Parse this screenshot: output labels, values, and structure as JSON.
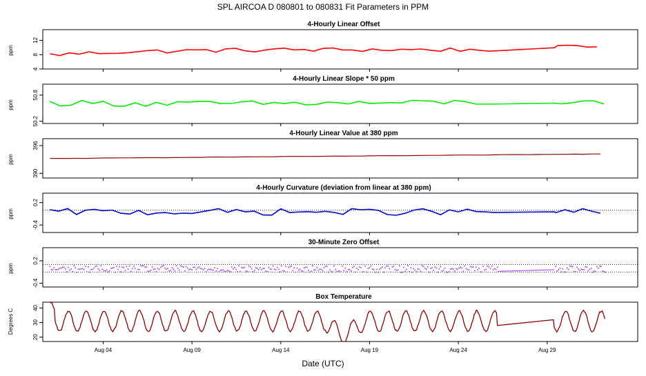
{
  "figure": {
    "title": "SPL   AIRCOA D   080801 to 080831   Fit Parameters in PPM",
    "xlabel": "Date (UTC)",
    "x_ticks": [
      "Aug 04",
      "Aug 09",
      "Aug 14",
      "Aug 19",
      "Aug 24",
      "Aug 29"
    ],
    "x_tick_days": [
      4,
      9,
      14,
      19,
      24,
      29
    ],
    "x_range_days": [
      0.6,
      34.1
    ],
    "data_range_days": [
      1.0,
      32.3
    ]
  },
  "chart_data": [
    {
      "type": "line",
      "title": "4-Hourly Linear Offset",
      "ylabel": "ppm",
      "ylim": [
        4,
        15
      ],
      "yticks": [
        4,
        8,
        12
      ],
      "ytick_labels": [
        "4",
        "8",
        "12"
      ],
      "color": "#ff0000",
      "mode": "line",
      "series": [
        {
          "baseline": [
            [
              1,
              8.0
            ],
            [
              5,
              8.8
            ],
            [
              10,
              9.2
            ],
            [
              15,
              9.4
            ],
            [
              20,
              9.4
            ],
            [
              25,
              9.4
            ],
            [
              29,
              9.9
            ],
            [
              32.3,
              10.3
            ]
          ],
          "noise": 0.6,
          "period": 0.55,
          "gap": [
            26.2,
            29.4
          ]
        }
      ]
    },
    {
      "type": "line",
      "title": "4-Hourly Linear Slope * 50 ppm",
      "ylabel": "ppm",
      "ylim": [
        50.15,
        51.05
      ],
      "yticks": [
        50.2,
        50.8
      ],
      "ytick_labels": [
        "50.2",
        "50.8"
      ],
      "color": "#00ee00",
      "mode": "line",
      "series": [
        {
          "baseline": [
            [
              1,
              50.62
            ],
            [
              10,
              50.6
            ],
            [
              20,
              50.62
            ],
            [
              25,
              50.64
            ],
            [
              32.3,
              50.6
            ]
          ],
          "noise": 0.07,
          "period": 0.6,
          "gap": [
            26.2,
            29.4
          ]
        }
      ]
    },
    {
      "type": "line",
      "title": "4-Hourly Linear Value at 380 ppm",
      "ylabel": "ppm",
      "ylim": [
        389,
        397.5
      ],
      "yticks": [
        390,
        396
      ],
      "ytick_labels": [
        "390",
        "396"
      ],
      "color": "#8b0000",
      "mode": "line",
      "series": [
        {
          "baseline": [
            [
              1,
              393.2
            ],
            [
              10,
              393.5
            ],
            [
              20,
              393.8
            ],
            [
              32.3,
              394.2
            ]
          ],
          "noise": 0.03,
          "period": 0.5,
          "gap": null
        }
      ]
    },
    {
      "type": "line",
      "title": "4-Hourly Curvature (deviation from linear at 380 ppm)",
      "ylabel": "ppm",
      "ylim": [
        -0.6,
        0.45
      ],
      "yticks": [
        -0.4,
        0.2
      ],
      "ytick_labels": [
        "-0.4",
        "0.2"
      ],
      "color": "#0000cc",
      "mode": "line",
      "ref_lines": [
        {
          "y": 0.0,
          "style": "dotted"
        }
      ],
      "series": [
        {
          "baseline": [
            [
              1,
              -0.05
            ],
            [
              32.3,
              -0.05
            ]
          ],
          "noise": 0.09,
          "period": 0.5,
          "gap": [
            26.2,
            29.4
          ]
        }
      ]
    },
    {
      "type": "scatter",
      "title": "30-Minute Zero Offset",
      "ylabel": "ppm",
      "ylim": [
        -0.5,
        0.55
      ],
      "yticks": [
        -0.4,
        0.2
      ],
      "ytick_labels": [
        "-0.4",
        "0.2"
      ],
      "color": "#9933ff",
      "mode": "points",
      "ref_lines": [
        {
          "y": 0.1,
          "style": "dotted"
        },
        {
          "y": -0.1,
          "style": "dotted"
        }
      ],
      "series": [
        {
          "baseline": [
            [
              1,
              -0.02
            ],
            [
              32.3,
              -0.02
            ]
          ],
          "noise": 0.09,
          "period": 0.08,
          "gap": [
            26.2,
            29.4
          ]
        }
      ]
    },
    {
      "type": "line",
      "title": "Box Temperature",
      "ylabel": "Degrees C",
      "ylim": [
        17,
        44
      ],
      "yticks": [
        20,
        30,
        40
      ],
      "ytick_labels": [
        "20",
        "30",
        "40"
      ],
      "color": "#8b0000",
      "mode": "diurnal",
      "series": [
        {
          "mean": 31,
          "amplitude": 7,
          "gap": [
            26.2,
            29.4
          ],
          "dip": [
            16.5,
            18.6,
            9
          ]
        }
      ]
    }
  ]
}
